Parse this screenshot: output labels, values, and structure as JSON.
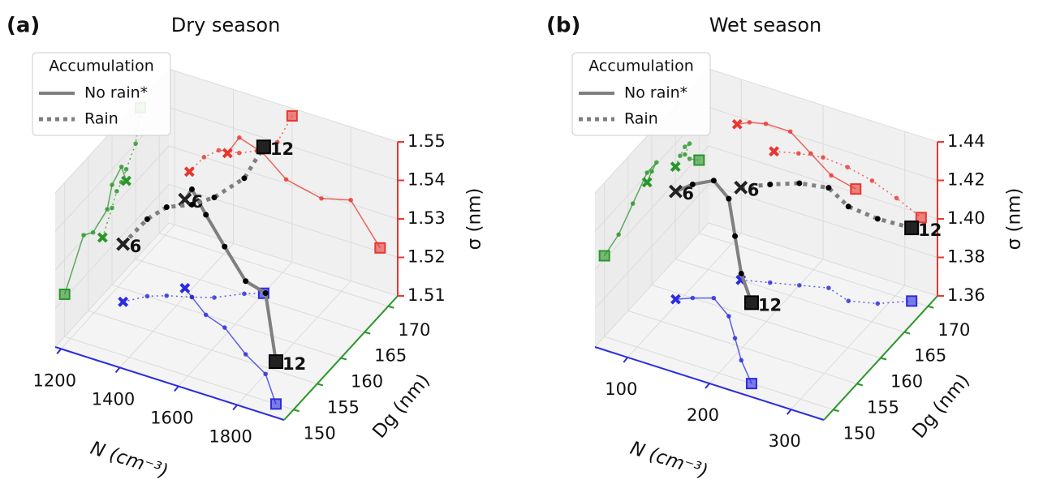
{
  "chart_data": [
    {
      "type": "scatter3d",
      "panel_label": "(a)",
      "title": "Dry season",
      "xlabel": "N (cm⁻³)",
      "ylabel": "Dg (nm)",
      "zlabel": "σ (nm)",
      "legend_title": "Accumulation",
      "legend": "upper left",
      "xlim": [
        1180,
        1960
      ],
      "xticks": [
        1200,
        1400,
        1600,
        1800
      ],
      "ylim": [
        148,
        172
      ],
      "yticks": [
        150,
        155,
        160,
        165,
        170
      ],
      "zlim": [
        1.51,
        1.55
      ],
      "zticks": [
        1.51,
        1.52,
        1.53,
        1.54,
        1.55
      ],
      "floor_color": "#2b2bdf",
      "side_wall_color": "#2a962a",
      "back_wall_color": "#e8372f",
      "series": [
        {
          "name": "No rain*",
          "color": "#7f7f7f",
          "linestyle": "solid",
          "x": [
            1380,
            1420,
            1500,
            1580,
            1700,
            1800,
            1900
          ],
          "y": [
            163,
            162,
            160,
            159,
            156,
            154,
            150
          ],
          "z": [
            1.533,
            1.538,
            1.536,
            1.531,
            1.529,
            1.531,
            1.521
          ],
          "labels": [
            "6",
            null,
            null,
            null,
            null,
            null,
            "12"
          ]
        },
        {
          "name": "Rain",
          "color": "#7f7f7f",
          "linestyle": "dotted",
          "x": [
            1250,
            1300,
            1350,
            1420,
            1480,
            1550,
            1600
          ],
          "y": [
            158,
            160,
            161,
            162,
            163,
            165,
            166
          ],
          "z": [
            1.525,
            1.53,
            1.533,
            1.534,
            1.536,
            1.54,
            1.548
          ],
          "labels": [
            "6",
            null,
            null,
            null,
            null,
            null,
            "12"
          ]
        }
      ]
    },
    {
      "type": "scatter3d",
      "panel_label": "(b)",
      "title": "Wet season",
      "xlabel": "N (cm⁻³)",
      "ylabel": "Dg (nm)",
      "zlabel": "σ (nm)",
      "legend_title": "Accumulation",
      "legend": "upper left",
      "xlim": [
        60,
        340
      ],
      "xticks": [
        100,
        200,
        300
      ],
      "ylim": [
        148,
        172
      ],
      "yticks": [
        150,
        155,
        160,
        165,
        170
      ],
      "zlim": [
        1.36,
        1.44
      ],
      "zticks": [
        1.36,
        1.38,
        {
          "value": 1.4,
          "label": "1.40"
        },
        1.42,
        1.44
      ],
      "floor_color": "#2b2bdf",
      "side_wall_color": "#2a962a",
      "back_wall_color": "#e8372f",
      "series": [
        {
          "name": "No rain*",
          "color": "#7f7f7f",
          "linestyle": "solid",
          "x": [
            95,
            110,
            130,
            160,
            185,
            210,
            240
          ],
          "y": [
            159,
            160,
            161,
            159,
            156,
            153,
            150
          ],
          "z": [
            1.416,
            1.419,
            1.421,
            1.421,
            1.413,
            1.405,
            1.402
          ],
          "labels": [
            "6",
            null,
            null,
            null,
            null,
            null,
            "12"
          ]
        },
        {
          "name": "Rain",
          "color": "#7f7f7f",
          "linestyle": "dotted",
          "x": [
            140,
            170,
            200,
            230,
            260,
            290,
            320
          ],
          "y": [
            165,
            166,
            167,
            168,
            167,
            168,
            170
          ],
          "z": [
            1.408,
            1.411,
            1.413,
            1.412,
            1.409,
            1.404,
            1.398
          ],
          "labels": [
            "6",
            null,
            null,
            null,
            null,
            null,
            "12"
          ]
        }
      ]
    }
  ]
}
